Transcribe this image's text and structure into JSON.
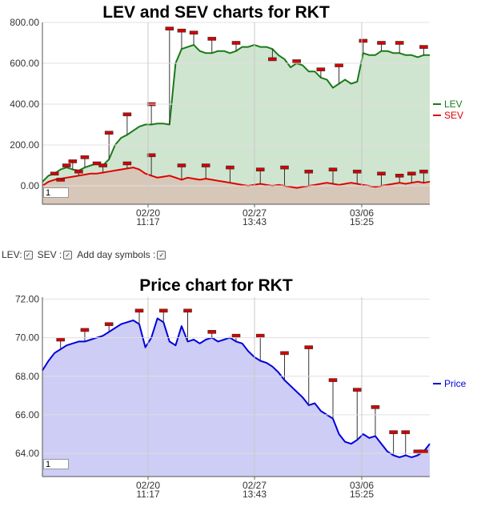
{
  "controls": {
    "lev_label": "LEV:",
    "sev_label": "SEV :",
    "day_symbols_label": "Add day symbols :"
  },
  "chart_data": [
    {
      "type": "line",
      "title": "LEV and SEV charts for RKT",
      "x_tick_labels": [
        [
          "02/20",
          "11:17"
        ],
        [
          "02/27",
          "13:43"
        ],
        [
          "03/06",
          "15:25"
        ]
      ],
      "y_ticks": [
        "0.00",
        "200.00",
        "400.00",
        "600.00",
        "800.00"
      ],
      "ylim": [
        -90,
        800
      ],
      "zoom_value": "1",
      "series": [
        {
          "name": "LEV",
          "color": "#1a7a1a",
          "fill": "#cfe5cf",
          "values": [
            20,
            50,
            60,
            80,
            90,
            80,
            75,
            90,
            100,
            110,
            100,
            130,
            200,
            235,
            250,
            270,
            290,
            300,
            300,
            305,
            305,
            300,
            600,
            670,
            680,
            690,
            660,
            650,
            650,
            660,
            660,
            650,
            660,
            680,
            680,
            690,
            680,
            680,
            670,
            640,
            620,
            580,
            600,
            590,
            560,
            560,
            530,
            520,
            480,
            500,
            520,
            500,
            510,
            650,
            640,
            640,
            660,
            660,
            650,
            650,
            640,
            640,
            630,
            640,
            640
          ],
          "day_markers": [
            [
              2,
              60
            ],
            [
              4,
              100
            ],
            [
              5,
              120
            ],
            [
              7,
              140
            ],
            [
              9,
              110
            ],
            [
              11,
              260
            ],
            [
              14,
              350
            ],
            [
              18,
              400
            ],
            [
              21,
              770
            ],
            [
              23,
              760
            ],
            [
              25,
              750
            ],
            [
              28,
              720
            ],
            [
              32,
              700
            ],
            [
              38,
              620
            ],
            [
              42,
              610
            ],
            [
              46,
              570
            ],
            [
              49,
              590
            ],
            [
              53,
              710
            ],
            [
              56,
              700
            ],
            [
              59,
              700
            ],
            [
              63,
              680
            ]
          ]
        },
        {
          "name": "SEV",
          "color": "#e00000",
          "fill": "#d8c2b4",
          "values": [
            0,
            20,
            30,
            35,
            40,
            45,
            50,
            55,
            60,
            60,
            65,
            70,
            75,
            80,
            85,
            90,
            80,
            60,
            50,
            40,
            45,
            50,
            40,
            30,
            40,
            35,
            30,
            35,
            30,
            25,
            20,
            15,
            10,
            5,
            0,
            5,
            10,
            5,
            0,
            5,
            0,
            -5,
            -10,
            -5,
            0,
            5,
            10,
            15,
            10,
            5,
            10,
            15,
            10,
            5,
            0,
            -5,
            0,
            5,
            10,
            15,
            10,
            15,
            20,
            15,
            20
          ],
          "day_markers": [
            [
              3,
              30
            ],
            [
              6,
              70
            ],
            [
              10,
              100
            ],
            [
              14,
              110
            ],
            [
              18,
              150
            ],
            [
              23,
              100
            ],
            [
              27,
              100
            ],
            [
              31,
              90
            ],
            [
              36,
              80
            ],
            [
              40,
              90
            ],
            [
              44,
              70
            ],
            [
              48,
              80
            ],
            [
              52,
              70
            ],
            [
              56,
              60
            ],
            [
              59,
              50
            ],
            [
              61,
              60
            ],
            [
              63,
              70
            ]
          ]
        }
      ]
    },
    {
      "type": "area",
      "title": "Price chart for RKT",
      "x_tick_labels": [
        [
          "02/20",
          "11:17"
        ],
        [
          "02/27",
          "13:43"
        ],
        [
          "03/06",
          "15:25"
        ]
      ],
      "y_ticks": [
        "64.00",
        "66.00",
        "68.00",
        "70.00",
        "72.00"
      ],
      "ylim": [
        62.8,
        72.1
      ],
      "zoom_value": "1",
      "series": [
        {
          "name": "Price",
          "color": "#0000dd",
          "fill": "#cdcdf5",
          "values": [
            68.3,
            68.8,
            69.2,
            69.4,
            69.6,
            69.7,
            69.8,
            69.8,
            69.9,
            70.0,
            70.1,
            70.3,
            70.5,
            70.7,
            70.8,
            70.9,
            70.7,
            69.5,
            70.0,
            71.0,
            70.8,
            69.8,
            69.6,
            70.6,
            69.8,
            69.9,
            69.7,
            69.9,
            70.0,
            69.8,
            69.9,
            70.0,
            69.8,
            69.7,
            69.3,
            69.0,
            68.8,
            68.7,
            68.5,
            68.2,
            67.8,
            67.5,
            67.2,
            66.9,
            66.5,
            66.6,
            66.2,
            66.0,
            65.8,
            65.0,
            64.6,
            64.5,
            64.7,
            65.0,
            64.8,
            64.9,
            64.5,
            64.1,
            63.9,
            63.8,
            63.9,
            63.8,
            63.9,
            64.1,
            64.5
          ],
          "day_markers": [
            [
              3,
              69.9
            ],
            [
              7,
              70.4
            ],
            [
              11,
              70.7
            ],
            [
              16,
              71.4
            ],
            [
              20,
              71.4
            ],
            [
              24,
              71.4
            ],
            [
              28,
              70.3
            ],
            [
              32,
              70.1
            ],
            [
              36,
              70.1
            ],
            [
              40,
              69.2
            ],
            [
              44,
              69.5
            ],
            [
              48,
              67.8
            ],
            [
              52,
              67.3
            ],
            [
              55,
              66.4
            ],
            [
              58,
              65.1
            ],
            [
              60,
              65.1
            ],
            [
              62,
              64.1
            ],
            [
              63,
              64.1
            ]
          ]
        }
      ]
    }
  ]
}
